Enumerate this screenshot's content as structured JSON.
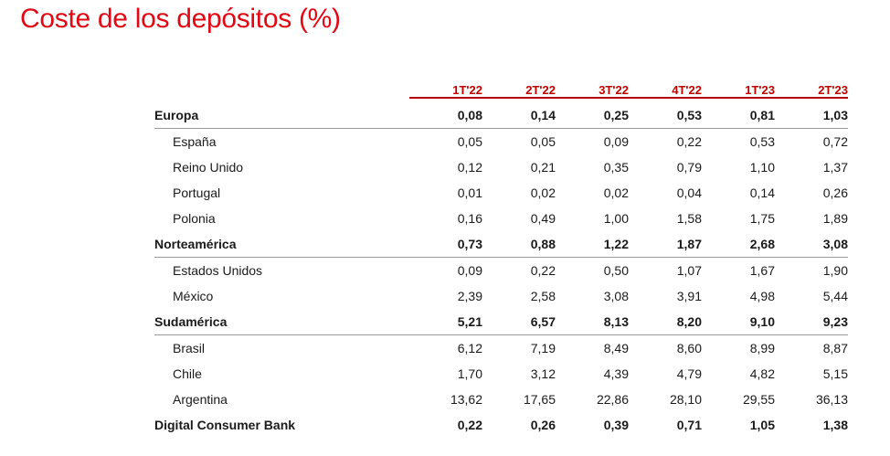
{
  "title": "Coste de los depósitos (%)",
  "columns": [
    "1T'22",
    "2T'22",
    "3T'22",
    "4T'22",
    "1T'23",
    "2T'23"
  ],
  "rows": [
    {
      "label": "Europa",
      "group": true,
      "values": [
        "0,08",
        "0,14",
        "0,25",
        "0,53",
        "0,81",
        "1,03"
      ]
    },
    {
      "label": "España",
      "group": false,
      "values": [
        "0,05",
        "0,05",
        "0,09",
        "0,22",
        "0,53",
        "0,72"
      ]
    },
    {
      "label": "Reino Unido",
      "group": false,
      "values": [
        "0,12",
        "0,21",
        "0,35",
        "0,79",
        "1,10",
        "1,37"
      ]
    },
    {
      "label": "Portugal",
      "group": false,
      "values": [
        "0,01",
        "0,02",
        "0,02",
        "0,04",
        "0,14",
        "0,26"
      ]
    },
    {
      "label": "Polonia",
      "group": false,
      "values": [
        "0,16",
        "0,49",
        "1,00",
        "1,58",
        "1,75",
        "1,89"
      ]
    },
    {
      "label": "Norteamérica",
      "group": true,
      "values": [
        "0,73",
        "0,88",
        "1,22",
        "1,87",
        "2,68",
        "3,08"
      ]
    },
    {
      "label": "Estados Unidos",
      "group": false,
      "values": [
        "0,09",
        "0,22",
        "0,50",
        "1,07",
        "1,67",
        "1,90"
      ]
    },
    {
      "label": "México",
      "group": false,
      "values": [
        "2,39",
        "2,58",
        "3,08",
        "3,91",
        "4,98",
        "5,44"
      ]
    },
    {
      "label": "Sudamérica",
      "group": true,
      "values": [
        "5,21",
        "6,57",
        "8,13",
        "8,20",
        "9,10",
        "9,23"
      ]
    },
    {
      "label": "Brasil",
      "group": false,
      "values": [
        "6,12",
        "7,19",
        "8,49",
        "8,60",
        "8,99",
        "8,87"
      ]
    },
    {
      "label": "Chile",
      "group": false,
      "values": [
        "1,70",
        "3,12",
        "4,39",
        "4,79",
        "4,82",
        "5,15"
      ]
    },
    {
      "label": "Argentina",
      "group": false,
      "values": [
        "13,62",
        "17,65",
        "22,86",
        "28,10",
        "29,55",
        "36,13"
      ]
    },
    {
      "label": "Digital Consumer Bank",
      "group": true,
      "values": [
        "0,22",
        "0,26",
        "0,39",
        "0,71",
        "1,05",
        "1,38"
      ]
    }
  ],
  "colors": {
    "title": "#e30613",
    "header": "#c00000",
    "header_rule": "#b30000",
    "row_rule": "#9a9a9a"
  }
}
